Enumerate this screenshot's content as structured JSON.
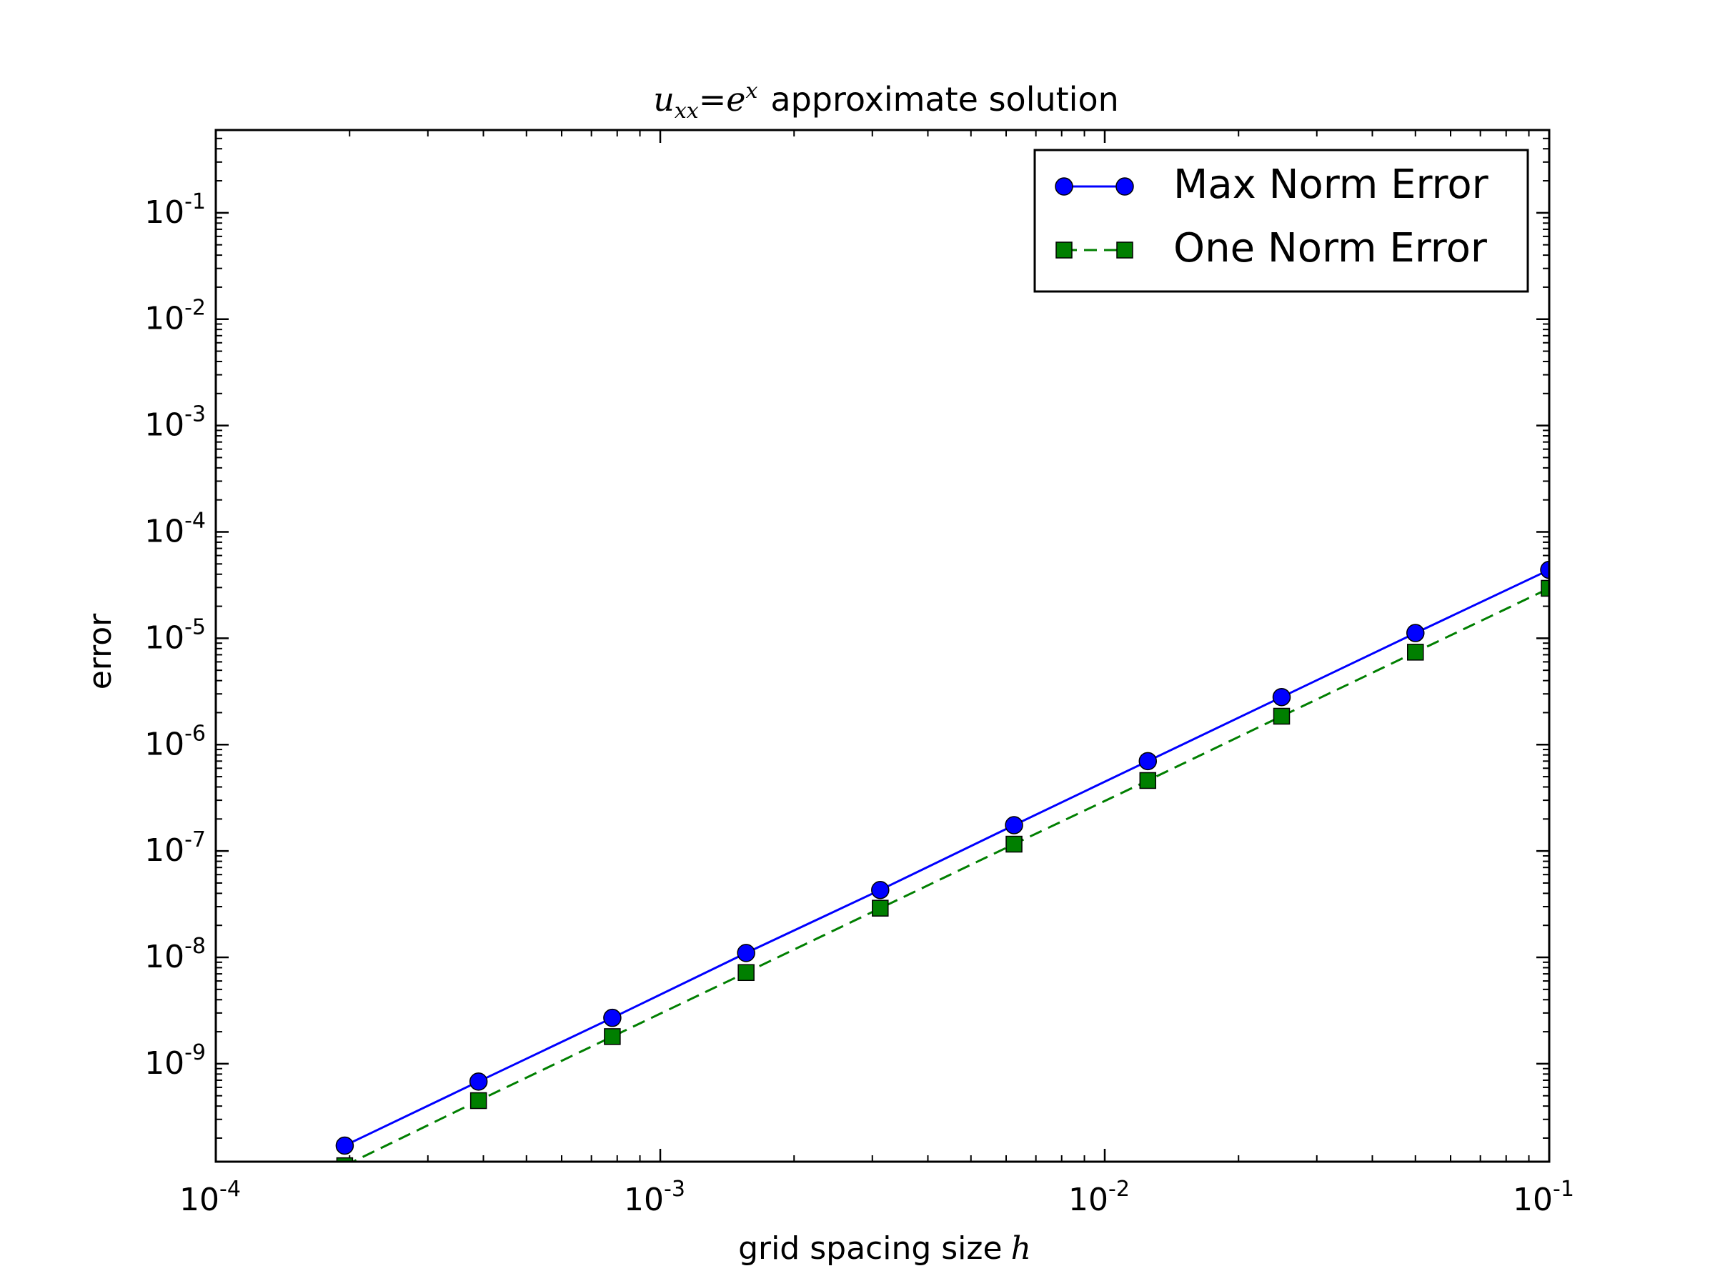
{
  "chart_data": {
    "type": "line",
    "title_math": "u",
    "title_math_sub": "xx",
    "title_math_eq": "=e",
    "title_math_sup": "x",
    "title_text": "approximate solution",
    "xlabel_text": "grid spacing size",
    "xlabel_math": "h",
    "ylabel": "error",
    "xscale": "log",
    "yscale": "log",
    "xlim": [
      0.0001,
      0.1
    ],
    "ylim": [
      1.2e-10,
      0.6
    ],
    "x_ticks": [
      {
        "base": "10",
        "exp": "-4",
        "value": 0.0001
      },
      {
        "base": "10",
        "exp": "-3",
        "value": 0.001
      },
      {
        "base": "10",
        "exp": "-2",
        "value": 0.01
      },
      {
        "base": "10",
        "exp": "-1",
        "value": 0.1
      }
    ],
    "y_ticks": [
      {
        "base": "10",
        "exp": "-9",
        "value": 1e-09
      },
      {
        "base": "10",
        "exp": "-8",
        "value": 1e-08
      },
      {
        "base": "10",
        "exp": "-7",
        "value": 1e-07
      },
      {
        "base": "10",
        "exp": "-6",
        "value": 1e-06
      },
      {
        "base": "10",
        "exp": "-5",
        "value": 1e-05
      },
      {
        "base": "10",
        "exp": "-4",
        "value": 0.0001
      },
      {
        "base": "10",
        "exp": "-3",
        "value": 0.001
      },
      {
        "base": "10",
        "exp": "-2",
        "value": 0.01
      },
      {
        "base": "10",
        "exp": "-1",
        "value": 0.1
      }
    ],
    "x": [
      0.000195,
      0.00039,
      0.00078,
      0.00156,
      0.003125,
      0.00625,
      0.0125,
      0.025,
      0.05,
      0.1
    ],
    "series": [
      {
        "name": "Max Norm Error",
        "color": "#0000ff",
        "marker": "circle",
        "marker_color": "#0000ff",
        "line_style": "solid",
        "values": [
          1.7e-10,
          6.8e-10,
          2.7e-09,
          1.1e-08,
          4.3e-08,
          1.75e-07,
          7e-07,
          2.8e-06,
          1.12e-05,
          4.4e-05
        ]
      },
      {
        "name": "One Norm Error",
        "color": "#007f00",
        "marker": "square",
        "marker_color": "#007f00",
        "line_style": "dashed",
        "values": [
          1.1e-10,
          4.5e-10,
          1.8e-09,
          7.2e-09,
          2.9e-08,
          1.16e-07,
          4.6e-07,
          1.85e-06,
          7.4e-06,
          2.95e-05
        ]
      }
    ],
    "legend_position": "top-right",
    "grid": false
  }
}
